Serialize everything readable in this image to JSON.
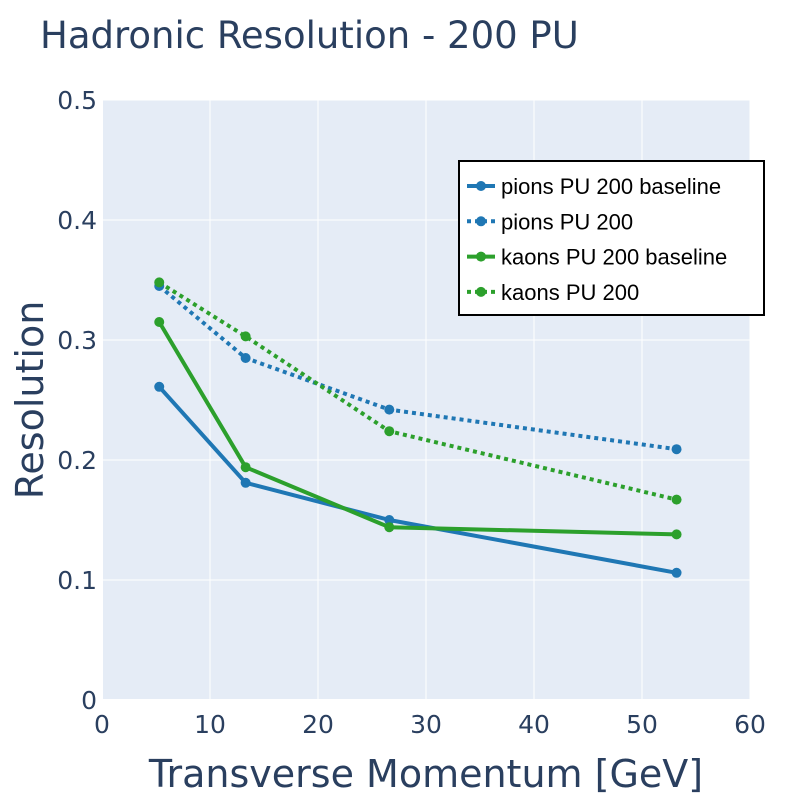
{
  "chart_data": {
    "type": "line",
    "title": "Hadronic Resolution - 200 PU",
    "xlabel": "Transverse Momentum [GeV]",
    "ylabel": "Resolution",
    "xlim": [
      0,
      60
    ],
    "ylim": [
      0,
      0.5
    ],
    "xticks": [
      "0",
      "10",
      "20",
      "30",
      "40",
      "50",
      "60"
    ],
    "yticks": [
      "0",
      "0.1",
      "0.2",
      "0.3",
      "0.4",
      "0.5"
    ],
    "grid": true,
    "legend_position": "top-right",
    "series": [
      {
        "name": "pions PU 200 baseline",
        "color": "#1f77b4",
        "dash": "solid",
        "x": [
          5.3,
          13.3,
          26.6,
          53.2
        ],
        "y": [
          0.261,
          0.181,
          0.15,
          0.106
        ]
      },
      {
        "name": "pions PU 200",
        "color": "#1f77b4",
        "dash": "dot",
        "x": [
          5.3,
          13.3,
          26.6,
          53.2
        ],
        "y": [
          0.345,
          0.285,
          0.242,
          0.209
        ]
      },
      {
        "name": "kaons PU 200 baseline",
        "color": "#2ca02c",
        "dash": "solid",
        "x": [
          5.3,
          13.3,
          26.6,
          53.2
        ],
        "y": [
          0.315,
          0.194,
          0.144,
          0.138
        ]
      },
      {
        "name": "kaons PU 200",
        "color": "#2ca02c",
        "dash": "dot",
        "x": [
          5.3,
          13.3,
          26.6,
          53.2
        ],
        "y": [
          0.348,
          0.303,
          0.224,
          0.167
        ]
      }
    ]
  }
}
